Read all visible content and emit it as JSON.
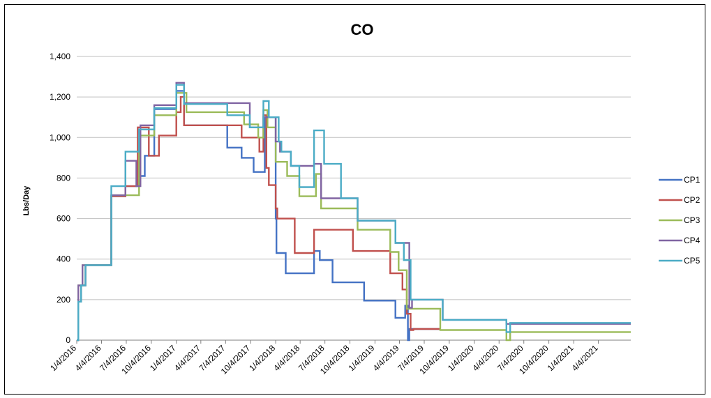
{
  "chart_data": {
    "type": "line",
    "title": "CO",
    "xlabel": "",
    "ylabel": "Lbs/Day",
    "ylim": [
      0,
      1400
    ],
    "yticks": [
      "0",
      "200",
      "400",
      "600",
      "800",
      "1,000",
      "1,200",
      "1,400"
    ],
    "xlim": [
      "2016-01-04",
      "2021-08-01"
    ],
    "xticks": [
      "1/4/2016",
      "4/4/2016",
      "7/4/2016",
      "10/4/2016",
      "1/4/2017",
      "4/4/2017",
      "7/4/2017",
      "10/4/2017",
      "1/4/2018",
      "4/4/2018",
      "7/4/2018",
      "10/4/2018",
      "1/4/2019",
      "4/4/2019",
      "7/4/2019",
      "10/4/2019",
      "1/4/2020",
      "4/4/2020",
      "7/4/2020",
      "10/4/2020",
      "1/4/2021",
      "4/4/2021"
    ],
    "grid": "horizontal",
    "legend_position": "right",
    "series": [
      {
        "name": "CP1",
        "color": "#4472C4",
        "points": [
          [
            "2016-01-04",
            0
          ],
          [
            "2016-01-10",
            0
          ],
          [
            "2016-01-10",
            190
          ],
          [
            "2016-01-20",
            190
          ],
          [
            "2016-01-20",
            270
          ],
          [
            "2016-02-05",
            270
          ],
          [
            "2016-02-05",
            370
          ],
          [
            "2016-05-10",
            370
          ],
          [
            "2016-05-10",
            710
          ],
          [
            "2016-07-01",
            710
          ],
          [
            "2016-07-01",
            760
          ],
          [
            "2016-08-15",
            760
          ],
          [
            "2016-08-15",
            810
          ],
          [
            "2016-09-10",
            810
          ],
          [
            "2016-09-10",
            910
          ],
          [
            "2016-10-15",
            910
          ],
          [
            "2016-10-15",
            1140
          ],
          [
            "2017-01-04",
            1140
          ],
          [
            "2017-01-04",
            1230
          ],
          [
            "2017-02-01",
            1230
          ],
          [
            "2017-02-01",
            1060
          ],
          [
            "2017-07-10",
            1060
          ],
          [
            "2017-07-10",
            950
          ],
          [
            "2017-09-01",
            950
          ],
          [
            "2017-09-01",
            900
          ],
          [
            "2017-10-15",
            900
          ],
          [
            "2017-10-15",
            830
          ],
          [
            "2017-11-25",
            830
          ],
          [
            "2017-11-25",
            1100
          ],
          [
            "2018-01-04",
            1100
          ],
          [
            "2018-01-04",
            600
          ],
          [
            "2018-01-07",
            600
          ],
          [
            "2018-01-07",
            430
          ],
          [
            "2018-02-10",
            430
          ],
          [
            "2018-02-10",
            330
          ],
          [
            "2018-05-25",
            330
          ],
          [
            "2018-05-25",
            440
          ],
          [
            "2018-06-15",
            440
          ],
          [
            "2018-06-15",
            395
          ],
          [
            "2018-08-01",
            395
          ],
          [
            "2018-08-01",
            285
          ],
          [
            "2018-11-25",
            285
          ],
          [
            "2018-11-25",
            195
          ],
          [
            "2019-03-20",
            195
          ],
          [
            "2019-03-20",
            110
          ],
          [
            "2019-04-25",
            110
          ],
          [
            "2019-04-25",
            170
          ],
          [
            "2019-05-05",
            170
          ],
          [
            "2019-05-05",
            0
          ],
          [
            "2019-05-10",
            0
          ],
          [
            "2019-05-10",
            55
          ],
          [
            "2019-09-01",
            55
          ]
        ]
      },
      {
        "name": "CP2",
        "color": "#C0504D",
        "points": [
          [
            "2016-01-04",
            0
          ],
          [
            "2016-01-10",
            0
          ],
          [
            "2016-01-10",
            190
          ],
          [
            "2016-01-20",
            190
          ],
          [
            "2016-01-20",
            270
          ],
          [
            "2016-02-05",
            270
          ],
          [
            "2016-02-05",
            370
          ],
          [
            "2016-05-10",
            370
          ],
          [
            "2016-05-10",
            710
          ],
          [
            "2016-07-01",
            710
          ],
          [
            "2016-07-01",
            760
          ],
          [
            "2016-08-15",
            760
          ],
          [
            "2016-08-15",
            1050
          ],
          [
            "2016-09-25",
            1050
          ],
          [
            "2016-09-25",
            910
          ],
          [
            "2016-11-01",
            910
          ],
          [
            "2016-11-01",
            1010
          ],
          [
            "2017-01-04",
            1010
          ],
          [
            "2017-01-04",
            1125
          ],
          [
            "2017-01-20",
            1125
          ],
          [
            "2017-01-20",
            1200
          ],
          [
            "2017-02-01",
            1200
          ],
          [
            "2017-02-01",
            1060
          ],
          [
            "2017-09-01",
            1060
          ],
          [
            "2017-09-01",
            1000
          ],
          [
            "2017-11-05",
            1000
          ],
          [
            "2017-11-05",
            930
          ],
          [
            "2017-11-20",
            930
          ],
          [
            "2017-11-20",
            1110
          ],
          [
            "2017-12-01",
            1110
          ],
          [
            "2017-12-01",
            850
          ],
          [
            "2017-12-10",
            850
          ],
          [
            "2017-12-10",
            765
          ],
          [
            "2018-01-04",
            765
          ],
          [
            "2018-01-04",
            650
          ],
          [
            "2018-01-10",
            650
          ],
          [
            "2018-01-10",
            600
          ],
          [
            "2018-03-15",
            600
          ],
          [
            "2018-03-15",
            430
          ],
          [
            "2018-05-25",
            430
          ],
          [
            "2018-05-25",
            545
          ],
          [
            "2018-10-15",
            545
          ],
          [
            "2018-10-15",
            440
          ],
          [
            "2019-03-01",
            440
          ],
          [
            "2019-03-01",
            330
          ],
          [
            "2019-04-15",
            330
          ],
          [
            "2019-04-15",
            250
          ],
          [
            "2019-05-01",
            250
          ],
          [
            "2019-05-01",
            130
          ],
          [
            "2019-05-15",
            130
          ],
          [
            "2019-05-15",
            50
          ],
          [
            "2019-05-25",
            50
          ],
          [
            "2019-05-25",
            55
          ],
          [
            "2019-09-01",
            55
          ]
        ]
      },
      {
        "name": "CP3",
        "color": "#9BBB59",
        "points": [
          [
            "2016-01-04",
            0
          ],
          [
            "2016-01-10",
            0
          ],
          [
            "2016-01-10",
            270
          ],
          [
            "2016-01-25",
            270
          ],
          [
            "2016-01-25",
            370
          ],
          [
            "2016-05-10",
            370
          ],
          [
            "2016-05-10",
            715
          ],
          [
            "2016-08-20",
            715
          ],
          [
            "2016-08-20",
            1010
          ],
          [
            "2016-10-15",
            1010
          ],
          [
            "2016-10-15",
            1110
          ],
          [
            "2017-01-04",
            1110
          ],
          [
            "2017-01-04",
            1220
          ],
          [
            "2017-02-10",
            1220
          ],
          [
            "2017-02-10",
            1125
          ],
          [
            "2017-09-10",
            1125
          ],
          [
            "2017-09-10",
            1065
          ],
          [
            "2017-11-01",
            1065
          ],
          [
            "2017-11-01",
            1000
          ],
          [
            "2017-11-20",
            1000
          ],
          [
            "2017-11-20",
            1135
          ],
          [
            "2017-12-05",
            1135
          ],
          [
            "2017-12-05",
            1050
          ],
          [
            "2018-01-04",
            1050
          ],
          [
            "2018-01-04",
            880
          ],
          [
            "2018-02-15",
            880
          ],
          [
            "2018-02-15",
            810
          ],
          [
            "2018-04-01",
            810
          ],
          [
            "2018-04-01",
            710
          ],
          [
            "2018-06-01",
            710
          ],
          [
            "2018-06-01",
            820
          ],
          [
            "2018-06-20",
            820
          ],
          [
            "2018-06-20",
            650
          ],
          [
            "2018-11-01",
            650
          ],
          [
            "2018-11-01",
            545
          ],
          [
            "2019-03-01",
            545
          ],
          [
            "2019-03-01",
            435
          ],
          [
            "2019-04-01",
            435
          ],
          [
            "2019-04-01",
            345
          ],
          [
            "2019-05-01",
            345
          ],
          [
            "2019-05-01",
            155
          ],
          [
            "2019-09-01",
            155
          ],
          [
            "2019-09-01",
            50
          ],
          [
            "2020-05-01",
            50
          ],
          [
            "2020-05-01",
            0
          ],
          [
            "2020-05-15",
            0
          ],
          [
            "2020-05-15",
            40
          ],
          [
            "2021-08-01",
            40
          ]
        ]
      },
      {
        "name": "CP4",
        "color": "#8064A2",
        "points": [
          [
            "2016-01-04",
            0
          ],
          [
            "2016-01-10",
            0
          ],
          [
            "2016-01-10",
            270
          ],
          [
            "2016-01-25",
            270
          ],
          [
            "2016-01-25",
            370
          ],
          [
            "2016-05-10",
            370
          ],
          [
            "2016-05-10",
            715
          ],
          [
            "2016-07-01",
            715
          ],
          [
            "2016-07-01",
            885
          ],
          [
            "2016-08-10",
            885
          ],
          [
            "2016-08-10",
            760
          ],
          [
            "2016-08-25",
            760
          ],
          [
            "2016-08-25",
            1060
          ],
          [
            "2016-10-15",
            1060
          ],
          [
            "2016-10-15",
            1160
          ],
          [
            "2017-01-04",
            1160
          ],
          [
            "2017-01-04",
            1270
          ],
          [
            "2017-02-01",
            1270
          ],
          [
            "2017-02-01",
            1170
          ],
          [
            "2017-10-01",
            1170
          ],
          [
            "2017-10-01",
            1050
          ],
          [
            "2017-11-20",
            1050
          ],
          [
            "2017-11-20",
            1100
          ],
          [
            "2018-01-04",
            1100
          ],
          [
            "2018-01-04",
            980
          ],
          [
            "2018-01-20",
            980
          ],
          [
            "2018-01-20",
            930
          ],
          [
            "2018-03-01",
            930
          ],
          [
            "2018-03-01",
            860
          ],
          [
            "2018-05-25",
            860
          ],
          [
            "2018-05-25",
            870
          ],
          [
            "2018-06-20",
            870
          ],
          [
            "2018-06-20",
            700
          ],
          [
            "2018-11-01",
            700
          ],
          [
            "2018-11-01",
            590
          ],
          [
            "2019-03-20",
            590
          ],
          [
            "2019-03-20",
            480
          ],
          [
            "2019-05-10",
            480
          ],
          [
            "2019-05-10",
            160
          ],
          [
            "2019-05-20",
            160
          ],
          [
            "2019-05-20",
            200
          ],
          [
            "2019-09-10",
            200
          ],
          [
            "2019-09-10",
            100
          ],
          [
            "2020-05-01",
            100
          ],
          [
            "2020-05-01",
            80
          ],
          [
            "2021-08-01",
            80
          ]
        ]
      },
      {
        "name": "CP5",
        "color": "#4BACC6",
        "points": [
          [
            "2016-01-04",
            0
          ],
          [
            "2016-01-10",
            0
          ],
          [
            "2016-01-10",
            190
          ],
          [
            "2016-01-20",
            190
          ],
          [
            "2016-01-20",
            270
          ],
          [
            "2016-02-05",
            270
          ],
          [
            "2016-02-05",
            370
          ],
          [
            "2016-05-10",
            370
          ],
          [
            "2016-05-10",
            760
          ],
          [
            "2016-07-01",
            760
          ],
          [
            "2016-07-01",
            930
          ],
          [
            "2016-08-20",
            930
          ],
          [
            "2016-08-20",
            1040
          ],
          [
            "2016-10-15",
            1040
          ],
          [
            "2016-10-15",
            1145
          ],
          [
            "2017-01-04",
            1145
          ],
          [
            "2017-01-04",
            1260
          ],
          [
            "2017-02-01",
            1260
          ],
          [
            "2017-02-01",
            1165
          ],
          [
            "2017-07-10",
            1165
          ],
          [
            "2017-07-10",
            1110
          ],
          [
            "2017-10-01",
            1110
          ],
          [
            "2017-10-01",
            1050
          ],
          [
            "2017-11-20",
            1050
          ],
          [
            "2017-11-20",
            1180
          ],
          [
            "2017-12-10",
            1180
          ],
          [
            "2017-12-10",
            1100
          ],
          [
            "2018-01-15",
            1100
          ],
          [
            "2018-01-15",
            980
          ],
          [
            "2018-01-25",
            980
          ],
          [
            "2018-01-25",
            930
          ],
          [
            "2018-03-01",
            930
          ],
          [
            "2018-03-01",
            860
          ],
          [
            "2018-04-01",
            860
          ],
          [
            "2018-04-01",
            755
          ],
          [
            "2018-05-25",
            755
          ],
          [
            "2018-05-25",
            1035
          ],
          [
            "2018-07-01",
            1035
          ],
          [
            "2018-07-01",
            870
          ],
          [
            "2018-09-01",
            870
          ],
          [
            "2018-09-01",
            700
          ],
          [
            "2018-11-01",
            700
          ],
          [
            "2018-11-01",
            590
          ],
          [
            "2019-03-20",
            590
          ],
          [
            "2019-03-20",
            480
          ],
          [
            "2019-04-20",
            480
          ],
          [
            "2019-04-20",
            395
          ],
          [
            "2019-05-15",
            395
          ],
          [
            "2019-05-15",
            200
          ],
          [
            "2019-09-10",
            200
          ],
          [
            "2019-09-10",
            100
          ],
          [
            "2020-05-01",
            100
          ],
          [
            "2020-05-01",
            40
          ],
          [
            "2020-05-15",
            40
          ],
          [
            "2020-05-15",
            85
          ],
          [
            "2021-08-01",
            85
          ]
        ]
      }
    ]
  }
}
